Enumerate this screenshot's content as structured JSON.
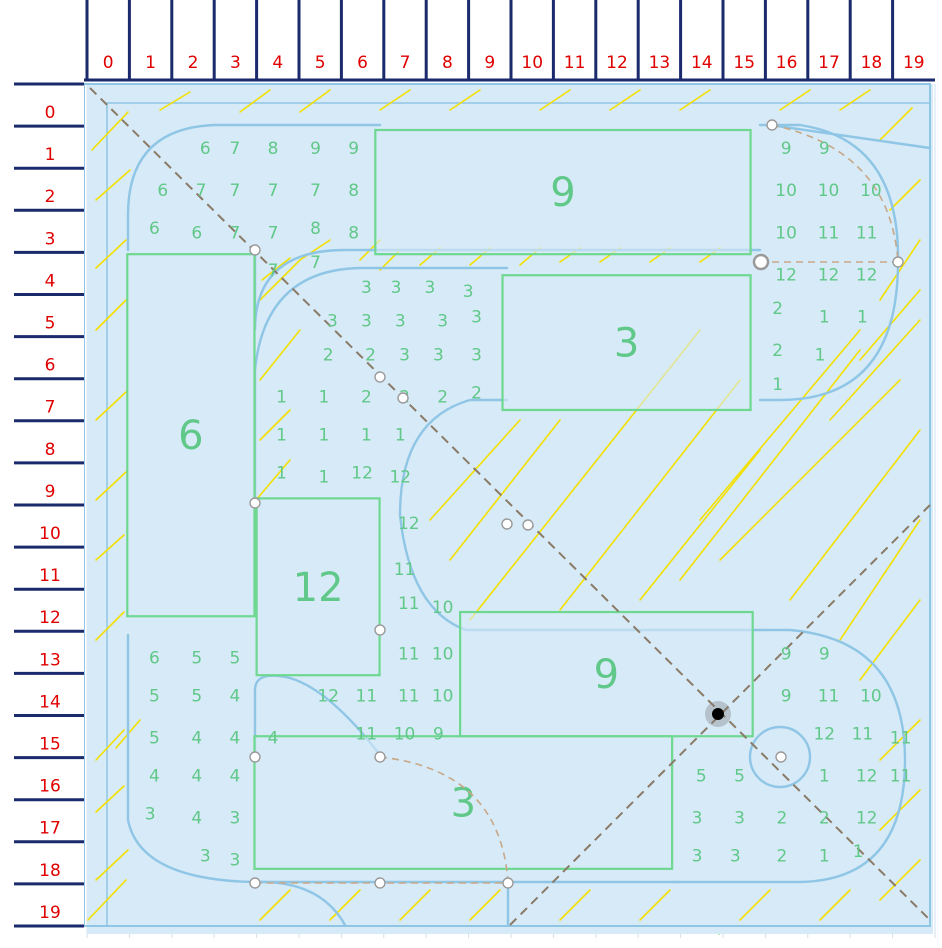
{
  "column_labels": [
    "0",
    "1",
    "2",
    "3",
    "4",
    "5",
    "6",
    "7",
    "8",
    "9",
    "10",
    "11",
    "12",
    "13",
    "14",
    "15",
    "16",
    "17",
    "18",
    "19"
  ],
  "row_labels": [
    "0",
    "1",
    "2",
    "3",
    "4",
    "5",
    "6",
    "7",
    "8",
    "9",
    "10",
    "11",
    "12",
    "13",
    "14",
    "15",
    "16",
    "17",
    "18",
    "19"
  ],
  "colors": {
    "grid": "#cfe0ec",
    "field": "#d7eaf7",
    "rail": "#8fc6e6",
    "rect": "#6fd890",
    "hatch": "#f3e000",
    "dash": "#8a7a66",
    "axis_label": "#e00000",
    "axis_tick": "#1a2a6c",
    "number": "#60c888",
    "pink": "#f0b8c8",
    "green_guide": "#90e090"
  },
  "rectangles": [
    {
      "id": "rect-top-9",
      "label": "9",
      "c1": 6.8,
      "r1": 0.95,
      "c2": 15.65,
      "r2": 3.9
    },
    {
      "id": "rect-right-3",
      "label": "3",
      "c1": 9.8,
      "r1": 4.4,
      "c2": 15.65,
      "r2": 7.6
    },
    {
      "id": "rect-left-6",
      "label": "6",
      "c1": 0.95,
      "r1": 3.9,
      "c2": 3.95,
      "r2": 12.5
    },
    {
      "id": "rect-center-12",
      "label": "12",
      "c1": 4,
      "r1": 9.7,
      "c2": 6.9,
      "r2": 13.9
    },
    {
      "id": "rect-mid-9",
      "label": "9",
      "c1": 8.8,
      "r1": 12.4,
      "c2": 15.7,
      "r2": 15.35
    },
    {
      "id": "rect-bottom-3",
      "label": "3",
      "c1": 3.95,
      "r1": 15.35,
      "c2": 13.8,
      "r2": 18.5
    }
  ],
  "numbers": [
    {
      "t": "6",
      "c": 2.6,
      "r": 1
    },
    {
      "t": "7",
      "c": 3.3,
      "r": 1
    },
    {
      "t": "8",
      "c": 4.2,
      "r": 1
    },
    {
      "t": "9",
      "c": 5.2,
      "r": 1
    },
    {
      "t": "9",
      "c": 6.1,
      "r": 1
    },
    {
      "t": "6",
      "c": 1.6,
      "r": 2
    },
    {
      "t": "7",
      "c": 2.5,
      "r": 2
    },
    {
      "t": "7",
      "c": 3.3,
      "r": 2
    },
    {
      "t": "7",
      "c": 4.2,
      "r": 2
    },
    {
      "t": "7",
      "c": 5.2,
      "r": 2
    },
    {
      "t": "8",
      "c": 6.1,
      "r": 2
    },
    {
      "t": "6",
      "c": 1.4,
      "r": 2.9
    },
    {
      "t": "6",
      "c": 2.4,
      "r": 3
    },
    {
      "t": "7",
      "c": 3.3,
      "r": 3
    },
    {
      "t": "7",
      "c": 4.2,
      "r": 3
    },
    {
      "t": "8",
      "c": 5.2,
      "r": 2.9
    },
    {
      "t": "8",
      "c": 6.1,
      "r": 3
    },
    {
      "t": "7",
      "c": 4.2,
      "r": 3.9
    },
    {
      "t": "7",
      "c": 5.2,
      "r": 3.7
    },
    {
      "t": "3",
      "c": 6.4,
      "r": 4.3
    },
    {
      "t": "3",
      "c": 7.1,
      "r": 4.3
    },
    {
      "t": "3",
      "c": 7.9,
      "r": 4.3
    },
    {
      "t": "3",
      "c": 8.8,
      "r": 4.4
    },
    {
      "t": "3",
      "c": 5.6,
      "r": 5.1
    },
    {
      "t": "3",
      "c": 6.4,
      "r": 5.1
    },
    {
      "t": "3",
      "c": 7.2,
      "r": 5.1
    },
    {
      "t": "3",
      "c": 8.2,
      "r": 5.1
    },
    {
      "t": "3",
      "c": 9,
      "r": 5
    },
    {
      "t": "2",
      "c": 5.5,
      "r": 5.9
    },
    {
      "t": "2",
      "c": 6.5,
      "r": 5.9
    },
    {
      "t": "3",
      "c": 7.3,
      "r": 5.9
    },
    {
      "t": "3",
      "c": 8.1,
      "r": 5.9
    },
    {
      "t": "3",
      "c": 9,
      "r": 5.9
    },
    {
      "t": "1",
      "c": 4.4,
      "r": 6.9
    },
    {
      "t": "1",
      "c": 5.4,
      "r": 6.9
    },
    {
      "t": "2",
      "c": 6.4,
      "r": 6.9
    },
    {
      "t": "2",
      "c": 7.3,
      "r": 6.9
    },
    {
      "t": "2",
      "c": 8.2,
      "r": 6.9
    },
    {
      "t": "2",
      "c": 9,
      "r": 6.8
    },
    {
      "t": "1",
      "c": 4.4,
      "r": 7.8
    },
    {
      "t": "1",
      "c": 5.4,
      "r": 7.8
    },
    {
      "t": "1",
      "c": 6.4,
      "r": 7.8
    },
    {
      "t": "1",
      "c": 7.2,
      "r": 7.8
    },
    {
      "t": "1",
      "c": 4.4,
      "r": 8.7
    },
    {
      "t": "1",
      "c": 5.4,
      "r": 8.8
    },
    {
      "t": "12",
      "c": 6.3,
      "r": 8.7
    },
    {
      "t": "12",
      "c": 7.2,
      "r": 8.8
    },
    {
      "t": "12",
      "c": 7.4,
      "r": 9.9
    },
    {
      "t": "11",
      "c": 7.3,
      "r": 11
    },
    {
      "t": "11",
      "c": 7.4,
      "r": 11.8
    },
    {
      "t": "10",
      "c": 8.2,
      "r": 11.9
    },
    {
      "t": "11",
      "c": 7.4,
      "r": 13
    },
    {
      "t": "10",
      "c": 8.2,
      "r": 13
    },
    {
      "t": "6",
      "c": 1.4,
      "r": 13.1
    },
    {
      "t": "5",
      "c": 2.4,
      "r": 13.1
    },
    {
      "t": "5",
      "c": 3.3,
      "r": 13.1
    },
    {
      "t": "5",
      "c": 1.4,
      "r": 14
    },
    {
      "t": "5",
      "c": 2.4,
      "r": 14
    },
    {
      "t": "4",
      "c": 3.3,
      "r": 14
    },
    {
      "t": "12",
      "c": 5.5,
      "r": 14
    },
    {
      "t": "11",
      "c": 6.4,
      "r": 14
    },
    {
      "t": "11",
      "c": 7.4,
      "r": 14
    },
    {
      "t": "10",
      "c": 8.2,
      "r": 14
    },
    {
      "t": "5",
      "c": 1.4,
      "r": 15
    },
    {
      "t": "4",
      "c": 2.4,
      "r": 15
    },
    {
      "t": "4",
      "c": 3.3,
      "r": 15
    },
    {
      "t": "4",
      "c": 4.2,
      "r": 15
    },
    {
      "t": "11",
      "c": 6.4,
      "r": 14.9
    },
    {
      "t": "10",
      "c": 7.3,
      "r": 14.9
    },
    {
      "t": "9",
      "c": 8.1,
      "r": 14.9
    },
    {
      "t": "4",
      "c": 1.4,
      "r": 15.9
    },
    {
      "t": "4",
      "c": 2.4,
      "r": 15.9
    },
    {
      "t": "4",
      "c": 3.3,
      "r": 15.9
    },
    {
      "t": "3",
      "c": 1.3,
      "r": 16.8
    },
    {
      "t": "4",
      "c": 2.4,
      "r": 16.9
    },
    {
      "t": "3",
      "c": 3.3,
      "r": 16.9
    },
    {
      "t": "3",
      "c": 2.6,
      "r": 17.8
    },
    {
      "t": "3",
      "c": 3.3,
      "r": 17.9
    },
    {
      "t": "9",
      "c": 16.3,
      "r": 1
    },
    {
      "t": "9",
      "c": 17.2,
      "r": 1
    },
    {
      "t": "10",
      "c": 16.3,
      "r": 2
    },
    {
      "t": "10",
      "c": 17.3,
      "r": 2
    },
    {
      "t": "10",
      "c": 18.3,
      "r": 2
    },
    {
      "t": "10",
      "c": 16.3,
      "r": 3
    },
    {
      "t": "11",
      "c": 17.3,
      "r": 3
    },
    {
      "t": "11",
      "c": 18.2,
      "r": 3
    },
    {
      "t": "12",
      "c": 16.3,
      "r": 4
    },
    {
      "t": "12",
      "c": 17.3,
      "r": 4
    },
    {
      "t": "12",
      "c": 18.2,
      "r": 4
    },
    {
      "t": "2",
      "c": 16.1,
      "r": 4.8
    },
    {
      "t": "1",
      "c": 17.2,
      "r": 5
    },
    {
      "t": "1",
      "c": 18.1,
      "r": 5
    },
    {
      "t": "2",
      "c": 16.1,
      "r": 5.8
    },
    {
      "t": "1",
      "c": 17.1,
      "r": 5.9
    },
    {
      "t": "1",
      "c": 16.1,
      "r": 6.6
    },
    {
      "t": "9",
      "c": 16.3,
      "r": 13
    },
    {
      "t": "9",
      "c": 17.2,
      "r": 13
    },
    {
      "t": "9",
      "c": 16.3,
      "r": 14
    },
    {
      "t": "11",
      "c": 17.3,
      "r": 14
    },
    {
      "t": "10",
      "c": 18.3,
      "r": 14
    },
    {
      "t": "12",
      "c": 17.2,
      "r": 14.9
    },
    {
      "t": "11",
      "c": 18.1,
      "r": 14.9
    },
    {
      "t": "11",
      "c": 19,
      "r": 15
    },
    {
      "t": "5",
      "c": 14.3,
      "r": 15.9
    },
    {
      "t": "5",
      "c": 15.2,
      "r": 15.9
    },
    {
      "t": "1",
      "c": 17.2,
      "r": 15.9
    },
    {
      "t": "12",
      "c": 18.2,
      "r": 15.9
    },
    {
      "t": "11",
      "c": 19,
      "r": 15.9
    },
    {
      "t": "3",
      "c": 14.2,
      "r": 16.9
    },
    {
      "t": "3",
      "c": 15.2,
      "r": 16.9
    },
    {
      "t": "2",
      "c": 16.2,
      "r": 16.9
    },
    {
      "t": "2",
      "c": 17.2,
      "r": 16.9
    },
    {
      "t": "12",
      "c": 18.2,
      "r": 16.9
    },
    {
      "t": "3",
      "c": 14.2,
      "r": 17.8
    },
    {
      "t": "3",
      "c": 15.1,
      "r": 17.8
    },
    {
      "t": "2",
      "c": 16.2,
      "r": 17.8
    },
    {
      "t": "1",
      "c": 17.2,
      "r": 17.8
    },
    {
      "t": "1",
      "c": 18,
      "r": 17.7
    }
  ]
}
